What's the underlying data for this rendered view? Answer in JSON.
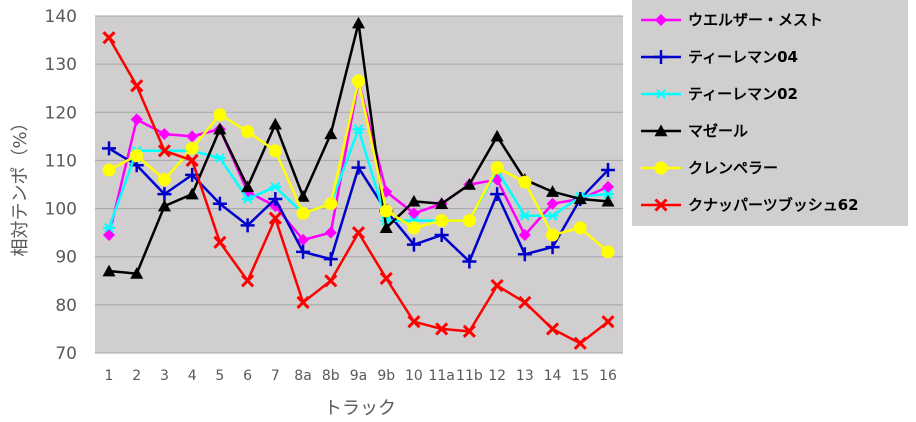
{
  "chart_data": {
    "type": "line",
    "title": "",
    "xlabel": "トラック",
    "ylabel": "相対テンポ（%）",
    "ylim": [
      70,
      140
    ],
    "yticks": [
      70,
      80,
      90,
      100,
      110,
      120,
      130,
      140
    ],
    "grid": true,
    "legend_position": "right",
    "categories": [
      "1",
      "2",
      "3",
      "4",
      "5",
      "6",
      "7",
      "8a",
      "8b",
      "9a",
      "9b",
      "10",
      "11a",
      "11b",
      "12",
      "13",
      "14",
      "15",
      "16"
    ],
    "series": [
      {
        "name": "ウエルザー・メスト",
        "color": "#ff00ff",
        "marker": "diamond",
        "values": [
          94.5,
          118.5,
          115.5,
          115,
          116.5,
          103.5,
          100.5,
          93.5,
          95,
          126.5,
          103.5,
          99,
          101,
          105,
          106,
          94.5,
          101,
          102,
          104.5
        ]
      },
      {
        "name": "ティーレマン04",
        "color": "#0000cc",
        "marker": "plus",
        "values": [
          112.5,
          109,
          103,
          107,
          101,
          96.5,
          102,
          91,
          89.5,
          108.5,
          99.5,
          92.5,
          94.5,
          89,
          103,
          90.5,
          92,
          102,
          108
        ]
      },
      {
        "name": "ティーレマン02",
        "color": "#00ffff",
        "marker": "star",
        "values": [
          96,
          112,
          112,
          112,
          110.5,
          102,
          104.5,
          99,
          101,
          116.5,
          97.5,
          97.5,
          97.5,
          97.5,
          108,
          98.5,
          98.5,
          102.5,
          103
        ]
      },
      {
        "name": "マゼール",
        "color": "#000000",
        "marker": "triangle",
        "values": [
          87,
          86.5,
          100.5,
          103,
          116.5,
          104.5,
          117.5,
          102.5,
          115.5,
          138.5,
          96,
          101.5,
          101,
          105,
          115,
          106,
          103.5,
          102,
          101.5
        ]
      },
      {
        "name": "クレンペラー",
        "color": "#ffff00",
        "marker": "circle",
        "values": [
          108,
          111,
          106,
          112.5,
          119.5,
          116,
          112,
          99,
          101,
          126.5,
          99.5,
          96,
          97.5,
          97.5,
          108.5,
          105.5,
          94.5,
          96,
          91
        ]
      },
      {
        "name": "クナッパーツブッシュ62",
        "color": "#ff0000",
        "marker": "x",
        "values": [
          135.5,
          125.5,
          112,
          110,
          93,
          85,
          98,
          80.5,
          85,
          95,
          85.5,
          76.5,
          75,
          74.5,
          84,
          80.5,
          75,
          72,
          76.5
        ]
      }
    ]
  }
}
